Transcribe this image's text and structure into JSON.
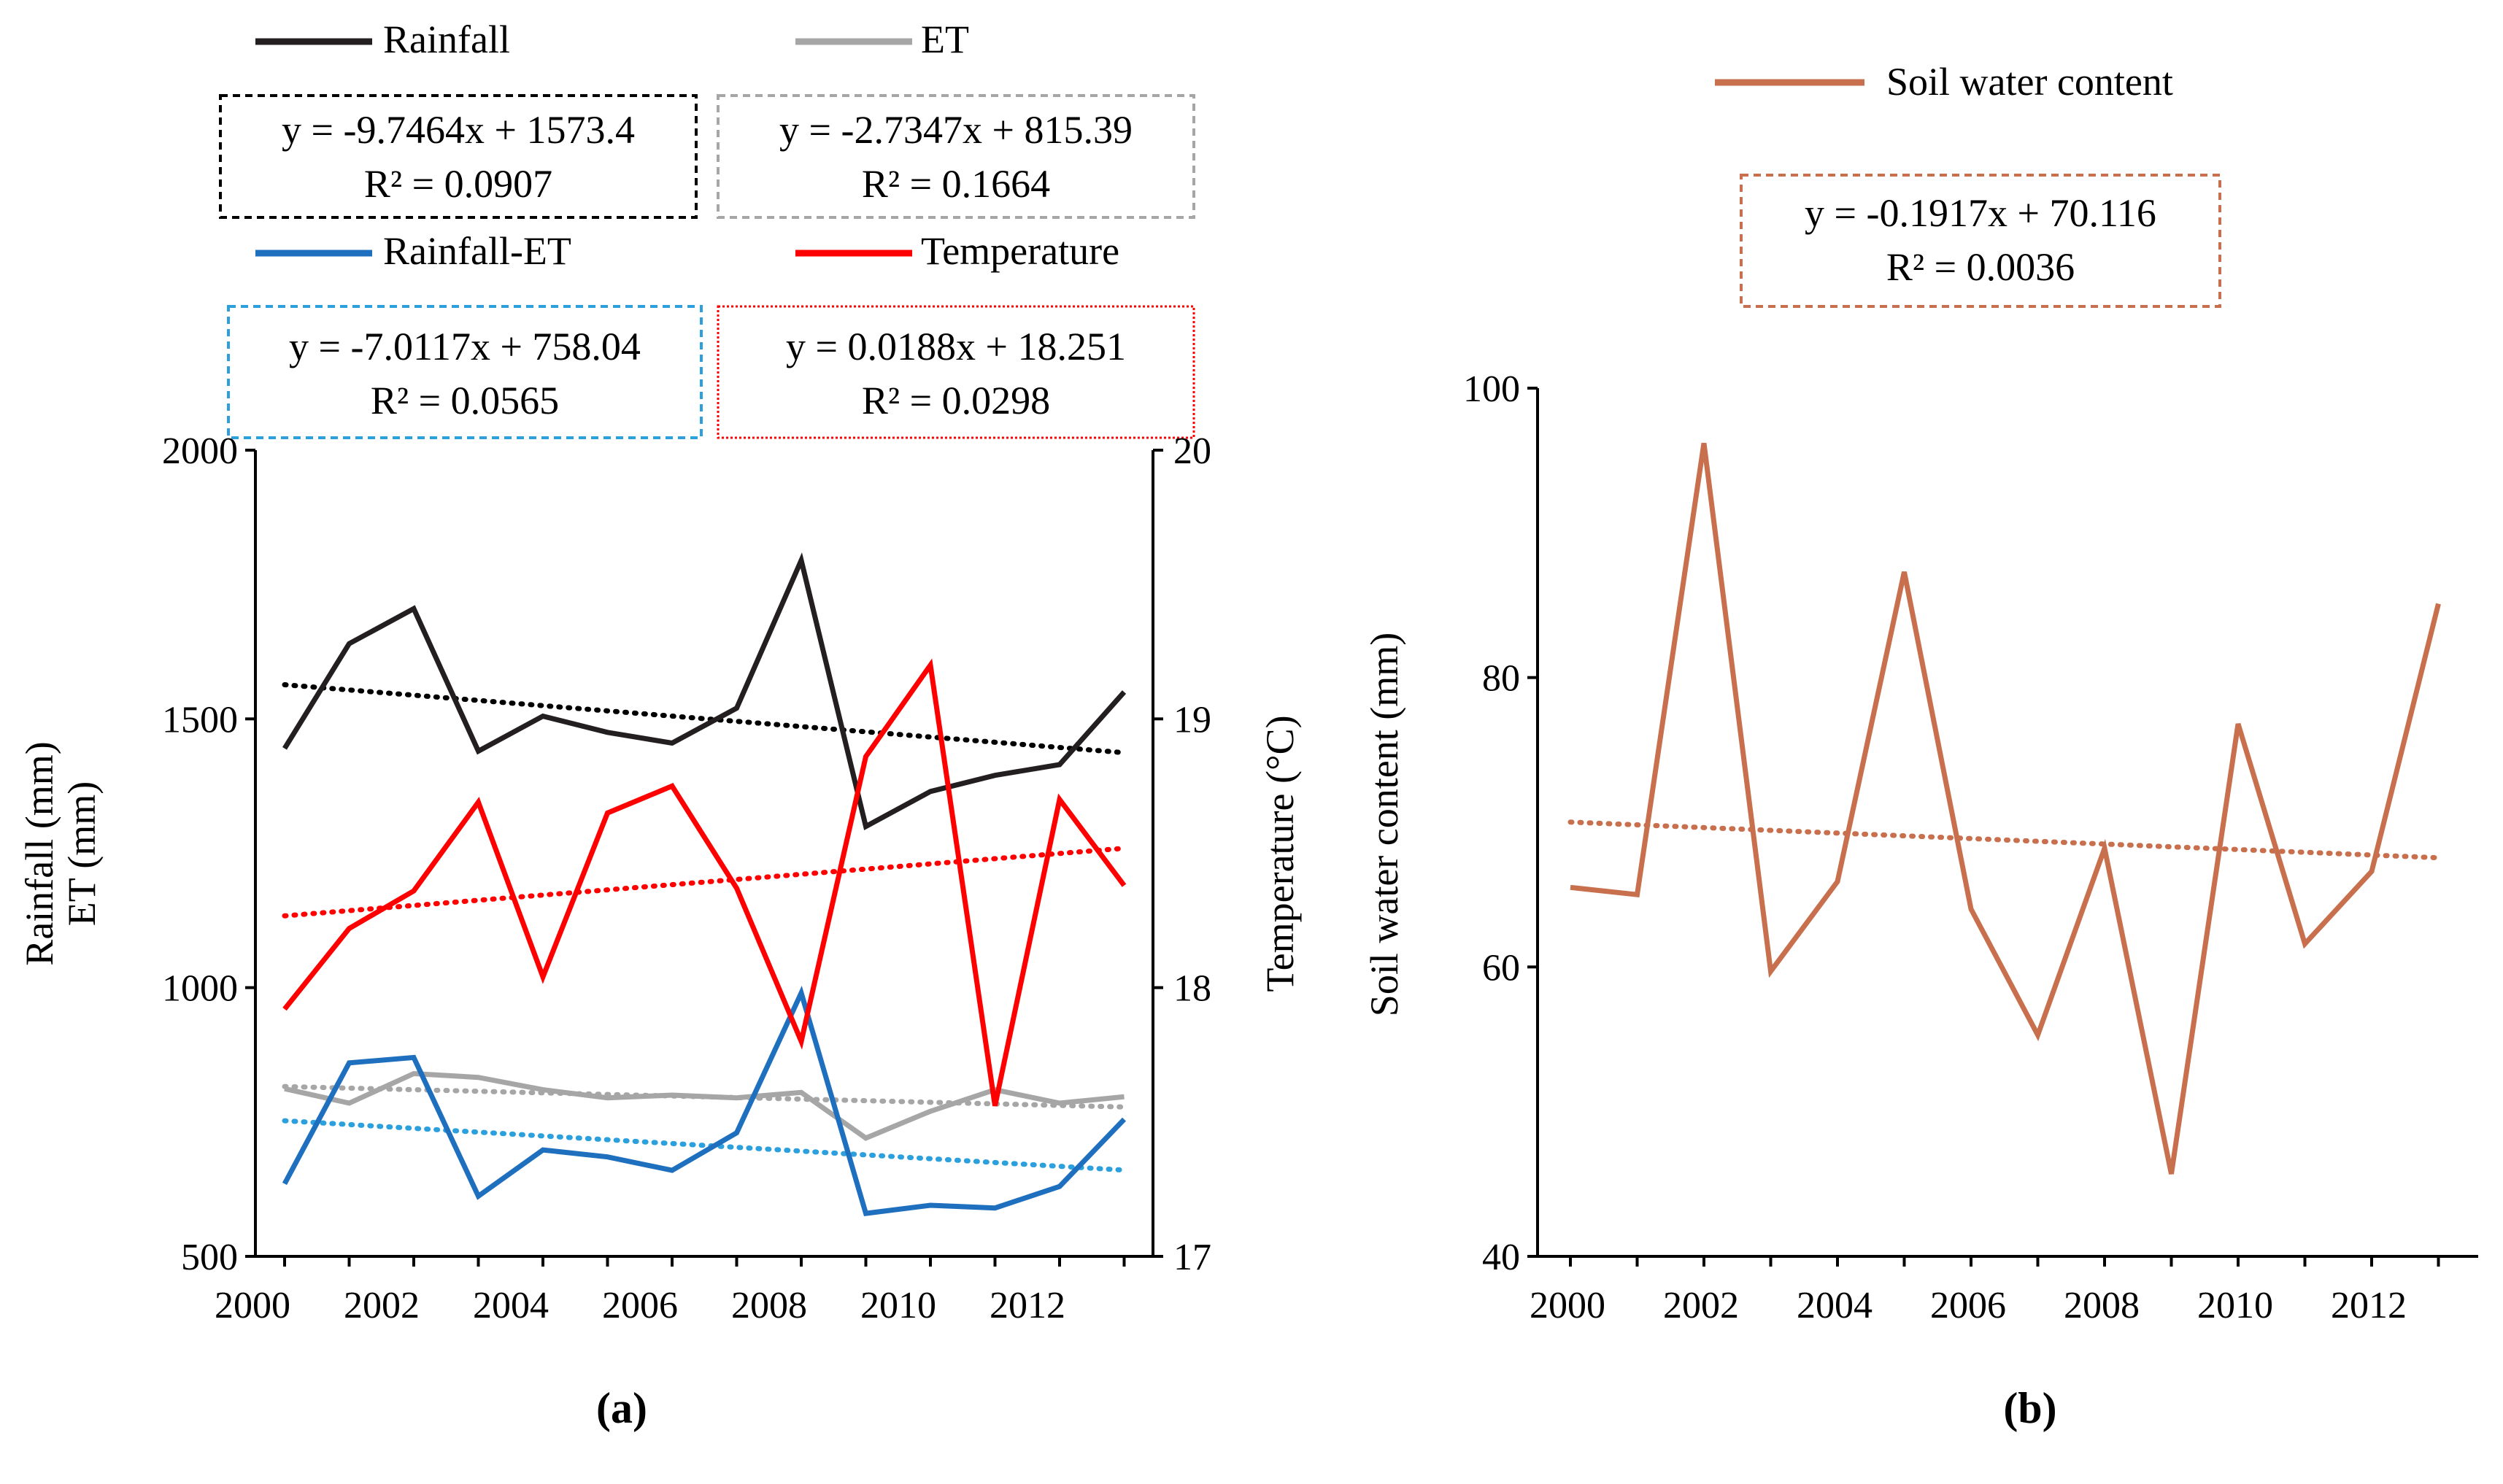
{
  "chart_data": [
    {
      "type": "line",
      "panel_label": "(a)",
      "x": [
        2000,
        2001,
        2002,
        2003,
        2004,
        2005,
        2006,
        2007,
        2008,
        2009,
        2010,
        2011,
        2012,
        2013
      ],
      "xticks": [
        2000,
        2002,
        2004,
        2006,
        2008,
        2010,
        2012
      ],
      "ylabel_left": [
        "Rainfall (mm)",
        "ET (mm)"
      ],
      "ylim_left": [
        500,
        2000
      ],
      "yticks_left": [
        500,
        1000,
        1500,
        2000
      ],
      "ylabel_right": "Temperature (°C)",
      "ylim_right": [
        17,
        20
      ],
      "yticks_right": [
        17,
        18,
        19,
        20
      ],
      "series": [
        {
          "name": "Rainfall",
          "axis": "left",
          "color": "#231f20",
          "values": [
            1445,
            1640,
            1705,
            1440,
            1505,
            1475,
            1455,
            1520,
            1795,
            1300,
            1365,
            1395,
            1415,
            1550
          ],
          "trend": {
            "equation": "y = -9.7464x + 1573.4",
            "r2": "R² = 0.0907",
            "color": "#000000"
          }
        },
        {
          "name": "ET",
          "axis": "left",
          "color": "#a6a6a6",
          "values": [
            812,
            785,
            840,
            833,
            810,
            795,
            800,
            795,
            805,
            720,
            770,
            810,
            785,
            797
          ],
          "trend": {
            "equation": "y = -2.7347x + 815.39",
            "r2": "R² = 0.1664",
            "color": "#a6a6a6"
          }
        },
        {
          "name": "Rainfall-ET",
          "axis": "left",
          "color": "#1f6fbf",
          "values": [
            635,
            860,
            870,
            612,
            698,
            685,
            660,
            730,
            990,
            580,
            595,
            590,
            630,
            755
          ],
          "trend": {
            "equation": "y = -7.0117x + 758.04",
            "r2": "R² = 0.0565",
            "color": "#2ca0dc"
          }
        },
        {
          "name": "Temperature",
          "axis": "right",
          "color": "#ff0000",
          "values": [
            17.92,
            18.22,
            18.36,
            18.69,
            18.04,
            18.65,
            18.75,
            18.37,
            17.8,
            18.86,
            19.2,
            17.56,
            18.7,
            18.38
          ],
          "trend": {
            "equation": "y = 0.0188x + 18.251",
            "r2": "R² = 0.0298",
            "color": "#ff0000"
          }
        }
      ]
    },
    {
      "type": "line",
      "panel_label": "(b)",
      "x": [
        2000,
        2001,
        2002,
        2003,
        2004,
        2005,
        2006,
        2007,
        2008,
        2009,
        2010,
        2011,
        2012,
        2013
      ],
      "xticks": [
        2000,
        2002,
        2004,
        2006,
        2008,
        2010,
        2012
      ],
      "ylabel": "Soil water content (mm)",
      "ylim": [
        40,
        100
      ],
      "yticks": [
        40,
        60,
        80,
        100
      ],
      "series": [
        {
          "name": "Soil water content",
          "color": "#c8704e",
          "values": [
            65.5,
            65.0,
            96.2,
            59.7,
            65.9,
            87.3,
            64.0,
            55.3,
            68.2,
            45.7,
            76.8,
            61.6,
            66.6,
            85.1
          ],
          "trend": {
            "equation": "y = -0.1917x + 70.116",
            "r2": "R² = 0.0036",
            "color": "#c8704e"
          }
        }
      ]
    }
  ]
}
